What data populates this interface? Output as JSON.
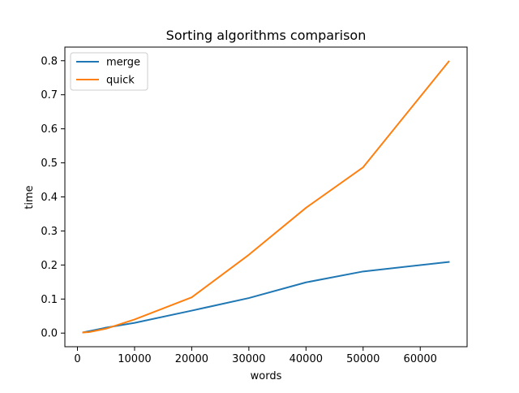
{
  "chart_data": {
    "type": "line",
    "title": "Sorting algorithms comparison",
    "xlabel": "words",
    "ylabel": "time",
    "xlim": [
      -2200,
      68200
    ],
    "ylim": [
      -0.04,
      0.84
    ],
    "xticks": [
      0,
      10000,
      20000,
      30000,
      40000,
      50000,
      60000
    ],
    "xtick_labels": [
      "0",
      "10000",
      "20000",
      "30000",
      "40000",
      "50000",
      "60000"
    ],
    "yticks": [
      0.0,
      0.1,
      0.2,
      0.3,
      0.4,
      0.5,
      0.6,
      0.7,
      0.8
    ],
    "ytick_labels": [
      "0.0",
      "0.1",
      "0.2",
      "0.3",
      "0.4",
      "0.5",
      "0.6",
      "0.7",
      "0.8"
    ],
    "grid": false,
    "legend_position": "top-left",
    "series": [
      {
        "name": "merge",
        "color": "#1f77b4",
        "x": [
          1000,
          5000,
          10000,
          20000,
          30000,
          40000,
          50000,
          65000
        ],
        "y": [
          0.002,
          0.016,
          0.03,
          0.066,
          0.103,
          0.149,
          0.181,
          0.209
        ]
      },
      {
        "name": "quick",
        "color": "#ff7f0e",
        "x": [
          1000,
          2000,
          5000,
          10000,
          20000,
          30000,
          40000,
          50000,
          65000
        ],
        "y": [
          0.002,
          0.003,
          0.013,
          0.04,
          0.105,
          0.23,
          0.368,
          0.487,
          0.798
        ]
      }
    ]
  }
}
